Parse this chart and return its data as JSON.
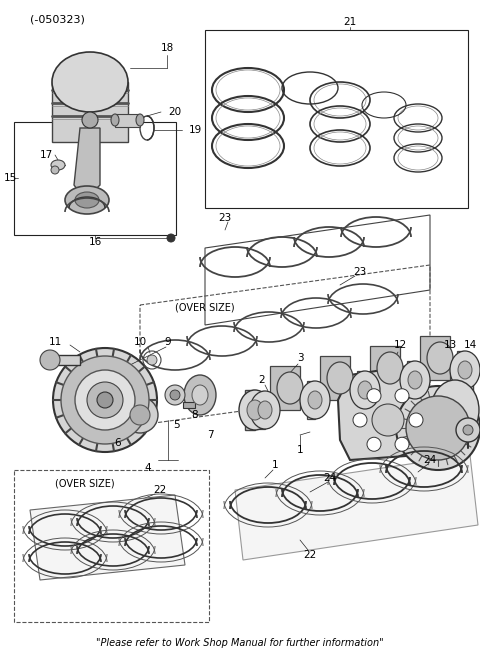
{
  "fig_width": 4.8,
  "fig_height": 6.56,
  "dpi": 100,
  "bg_color": "#ffffff",
  "title": "(-050323)",
  "footer": "\"Please refer to Work Shop Manual for further information\""
}
